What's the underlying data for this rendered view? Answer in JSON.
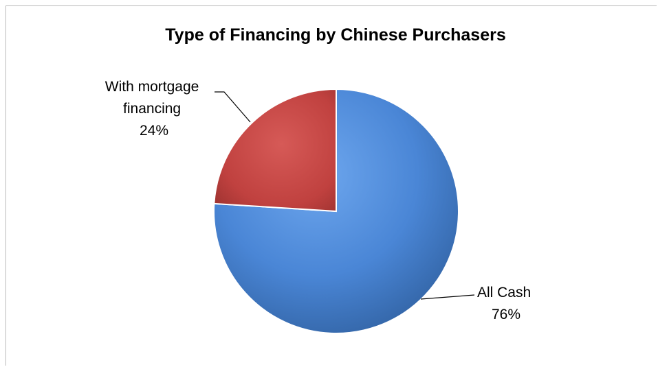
{
  "chart_data": {
    "type": "pie",
    "title": "Type of Financing by Chinese Purchasers",
    "slices": [
      {
        "label": "All Cash",
        "percent_label": "76%",
        "value": 76,
        "color": "#4a86d6"
      },
      {
        "label": "With mortgage financing",
        "label_lines": [
          "With mortgage",
          "financing"
        ],
        "percent_label": "24%",
        "value": 24,
        "color": "#c0413f"
      }
    ],
    "legend": "none",
    "labels": "outside-with-leader-lines"
  }
}
